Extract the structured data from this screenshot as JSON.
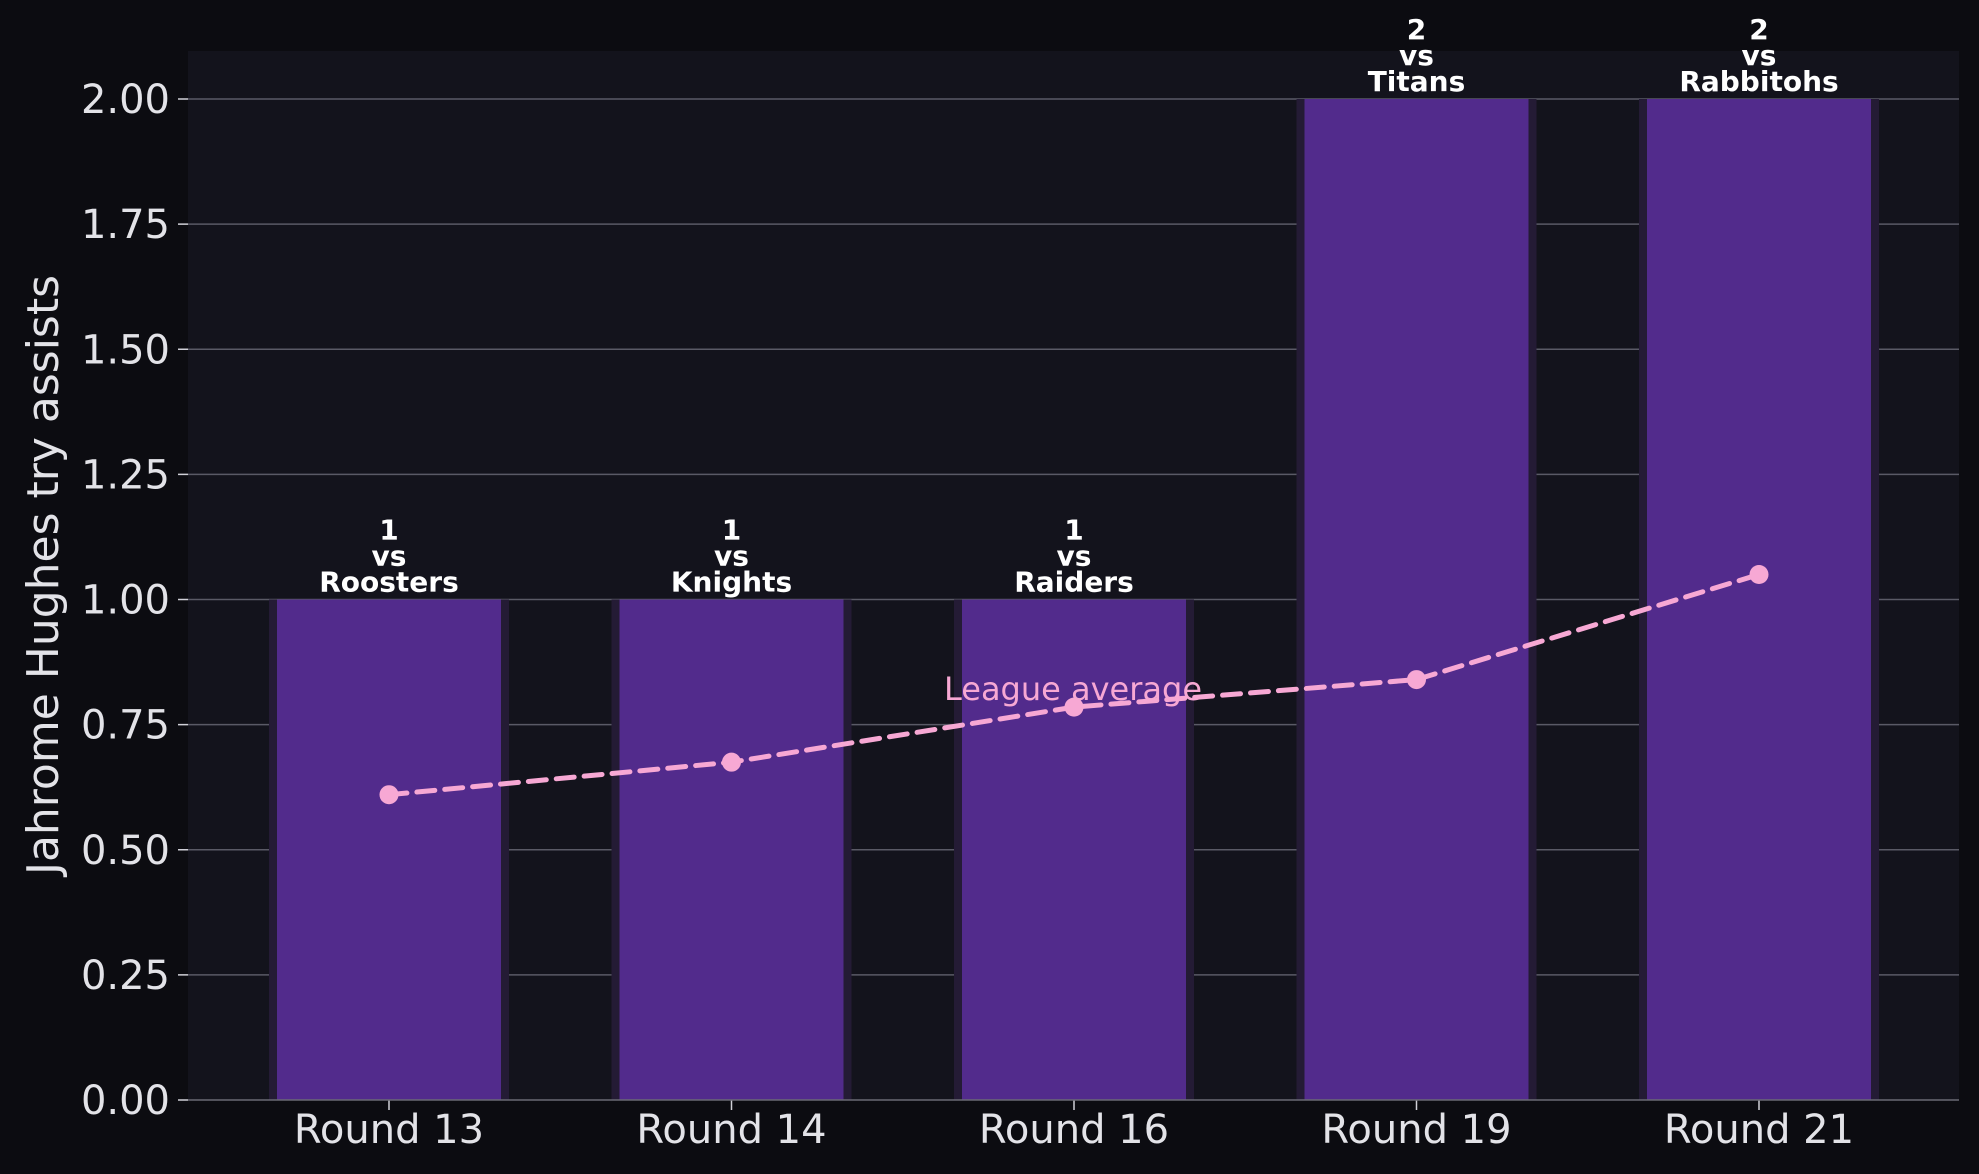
{
  "chart_data": {
    "type": "bar",
    "categories": [
      "Round 13",
      "Round 14",
      "Round 16",
      "Round 19",
      "Round 21"
    ],
    "series": [
      {
        "values": [
          1,
          1,
          1,
          2,
          2
        ]
      }
    ],
    "bar_labels": [
      [
        "1",
        "vs",
        "Roosters"
      ],
      [
        "1",
        "vs",
        "Knights"
      ],
      [
        "1",
        "vs",
        "Raiders"
      ],
      [
        "2",
        "vs",
        "Titans"
      ],
      [
        "2",
        "vs",
        "Rabbitohs"
      ]
    ],
    "overlay_line": {
      "name": "League average",
      "values": [
        0.61,
        0.675,
        0.785,
        0.84,
        1.05
      ],
      "style": "dashed"
    },
    "ylabel": "Jahrome Hughes try assists",
    "xlabel": "",
    "ylim": [
      0,
      2.1
    ],
    "yticks": [
      "0.00",
      "0.25",
      "0.50",
      "0.75",
      "1.00",
      "1.25",
      "1.50",
      "1.75",
      "2.00"
    ],
    "grid": "horizontal",
    "colors": {
      "bar": "#522b8c",
      "bar_edge": "#241b35",
      "line": "#f7a8d4",
      "plot_bg": "#13131c",
      "page_bg": "#0c0c11",
      "grid": "#5a5a66"
    }
  }
}
